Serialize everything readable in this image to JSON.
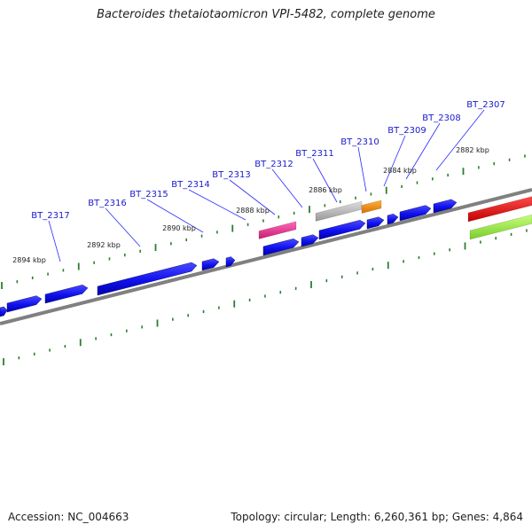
{
  "title": "Bacteroides thetaiotaomicron VPI-5482, complete genome",
  "accession_text": "Accession: NC_004663",
  "footer": {
    "topology": "circular",
    "length": "6,260,361 bp",
    "genes": "4,864",
    "text": "Topology: circular; Length: 6,260,361 bp; Genes: 4,864"
  },
  "colors": {
    "background": "#ffffff",
    "backbone": "#808080",
    "tick": "#2e7d2e",
    "gene_forward": "#1010ee",
    "label": "#1a1acc",
    "leader": "#2a2aff",
    "magenta_feature": "#e8308a",
    "gray_feature": "#b8b8b8",
    "orange_feature": "#f08c10",
    "red_feature": "#e81010",
    "green_feature": "#8ee03a"
  },
  "scale_labels": [
    "2882 kbp",
    "2884 kbp",
    "2886 kbp",
    "2888 kbp",
    "2890 kbp",
    "2892 kbp",
    "2894 kbp"
  ],
  "gene_labels": [
    "BT_2307",
    "BT_2308",
    "BT_2309",
    "BT_2310",
    "BT_2311",
    "BT_2312",
    "BT_2313",
    "BT_2314",
    "BT_2315",
    "BT_2316",
    "BT_2317"
  ],
  "features": [
    {
      "type": "gene",
      "strand": "+",
      "color": "blue"
    },
    {
      "type": "feature",
      "color": "magenta"
    },
    {
      "type": "feature",
      "color": "gray"
    },
    {
      "type": "feature",
      "color": "orange"
    },
    {
      "type": "feature",
      "color": "red"
    },
    {
      "type": "feature",
      "color": "green"
    }
  ]
}
